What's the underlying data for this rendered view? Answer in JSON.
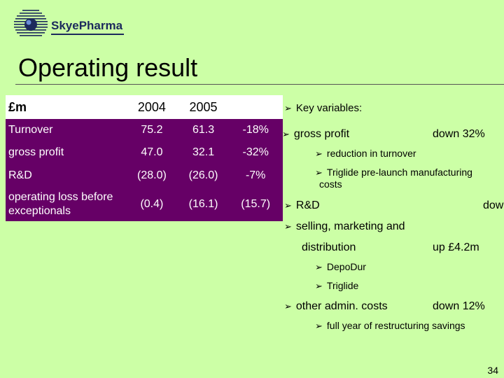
{
  "brand": {
    "name": "SkyePharma"
  },
  "title": "Operating result",
  "table": {
    "header": [
      "£m",
      "2004",
      "2005",
      ""
    ],
    "rows": [
      [
        "Turnover",
        "75.2",
        "61.3",
        "-18%"
      ],
      [
        "gross profit",
        "47.0",
        "32.1",
        "-32%"
      ],
      [
        "R&D",
        "(28.0)",
        "(26.0)",
        "-7%"
      ],
      [
        "operating loss before exceptionals",
        "(0.4)",
        "(16.1)",
        "(15.7)"
      ]
    ]
  },
  "bullets": {
    "key_variables": "Key variables:",
    "gross_profit": {
      "label": "gross profit",
      "value": "down 32%"
    },
    "reduction": "reduction in turnover",
    "triglide_prelaunch_1": "Triglide pre-launch manufacturing",
    "triglide_prelaunch_2": "costs",
    "rd": {
      "label": "R&D",
      "value": "dow"
    },
    "selling": "selling, marketing and",
    "distribution": {
      "label": "distribution",
      "value": "up £4.2m"
    },
    "depodur": "DepoDur",
    "triglide": "Triglide",
    "other_admin": {
      "label": "other admin. costs",
      "value": "down 12%"
    },
    "restructuring": "full year of restructuring savings"
  },
  "page_number": "34",
  "colors": {
    "background": "#ccffa6",
    "table_fill": "#660066",
    "table_text": "#ffffff",
    "brand": "#1c2a5c"
  }
}
